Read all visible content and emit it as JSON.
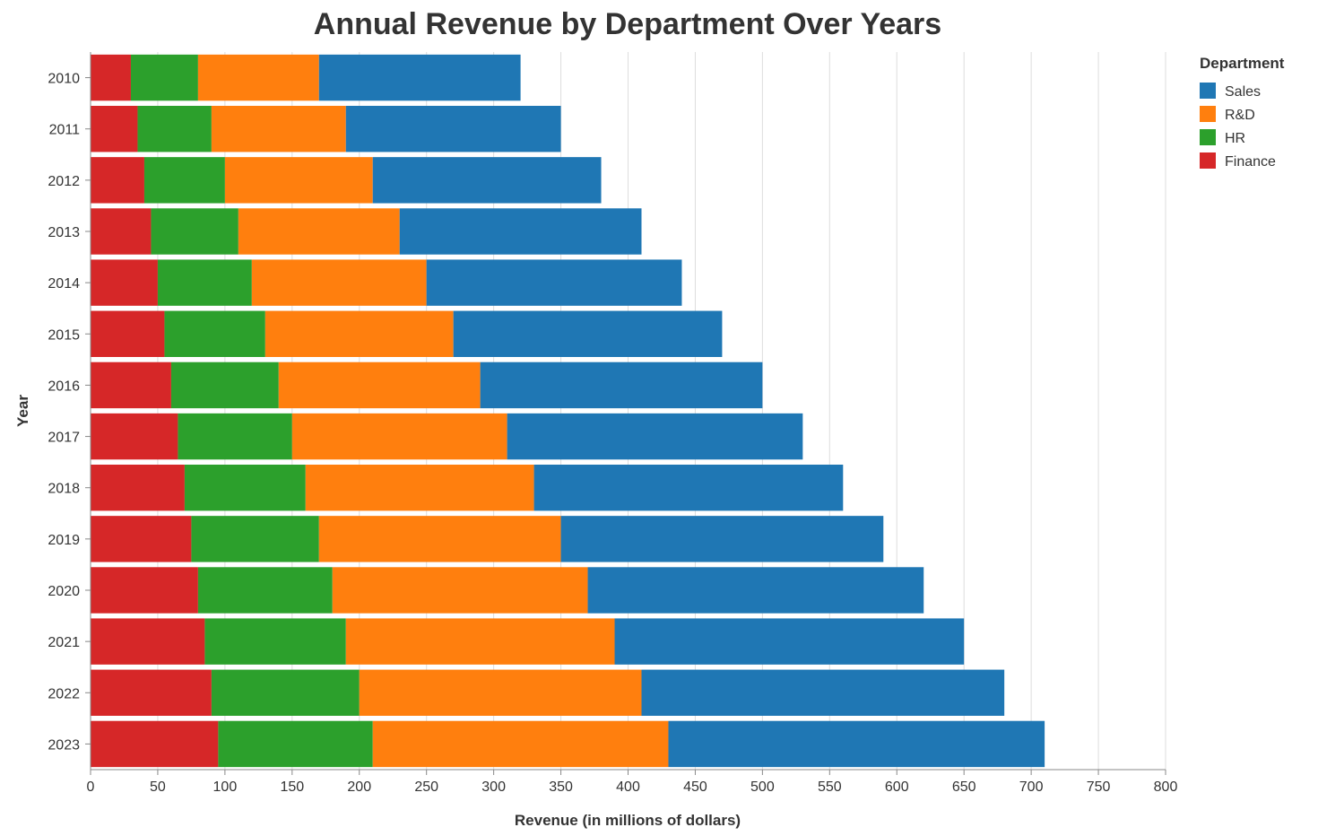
{
  "chart_data": {
    "type": "bar",
    "orientation": "horizontal",
    "stacked": true,
    "title": "Annual Revenue by Department Over Years",
    "xlabel": "Revenue (in millions of dollars)",
    "ylabel": "Year",
    "xlim": [
      0,
      800
    ],
    "xticks": [
      0,
      50,
      100,
      150,
      200,
      250,
      300,
      350,
      400,
      450,
      500,
      550,
      600,
      650,
      700,
      750,
      800
    ],
    "grid": true,
    "legend": {
      "title": "Department",
      "position": "top-right"
    },
    "categories": [
      "2010",
      "2011",
      "2012",
      "2013",
      "2014",
      "2015",
      "2016",
      "2017",
      "2018",
      "2019",
      "2020",
      "2021",
      "2022",
      "2023"
    ],
    "stack_order": [
      "Finance",
      "HR",
      "R&D",
      "Sales"
    ],
    "series": [
      {
        "name": "Sales",
        "color": "#1f77b4",
        "values": [
          150,
          160,
          170,
          180,
          190,
          200,
          210,
          220,
          230,
          240,
          250,
          260,
          270,
          280
        ]
      },
      {
        "name": "R&D",
        "color": "#ff7f0e",
        "values": [
          90,
          100,
          110,
          120,
          130,
          140,
          150,
          160,
          170,
          180,
          190,
          200,
          210,
          220
        ]
      },
      {
        "name": "HR",
        "color": "#2ca02c",
        "values": [
          50,
          55,
          60,
          65,
          70,
          75,
          80,
          85,
          90,
          95,
          100,
          105,
          110,
          115
        ]
      },
      {
        "name": "Finance",
        "color": "#d62728",
        "values": [
          30,
          35,
          40,
          45,
          50,
          55,
          60,
          65,
          70,
          75,
          80,
          85,
          90,
          95
        ]
      }
    ]
  }
}
